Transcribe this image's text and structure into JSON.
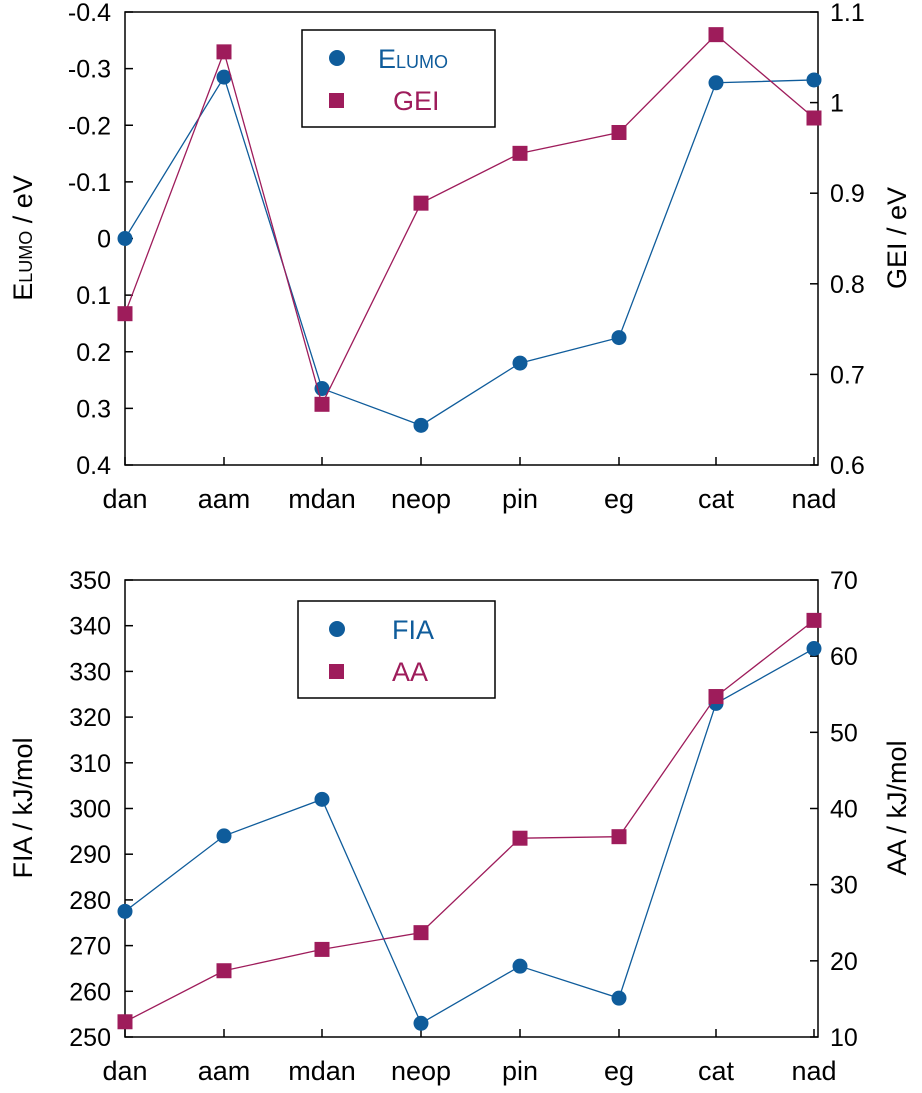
{
  "colors": {
    "blue": "#0F5C9B",
    "red": "#9E1C5B",
    "axis": "#000000"
  },
  "chart_data": [
    {
      "type": "line",
      "categories": [
        "dan",
        "aam",
        "mdan",
        "neop",
        "pin",
        "eg",
        "cat",
        "nad"
      ],
      "y_left": {
        "label_main": "E",
        "label_sub": "LUMO",
        "label_unit": " / eV",
        "lim": [
          0.4,
          -0.4
        ],
        "inverted": true,
        "ticks": [
          -0.4,
          -0.3,
          -0.2,
          -0.1,
          0,
          0.1,
          0.2,
          0.3,
          0.4
        ],
        "tick_labels": [
          "-0.4",
          "-0.3",
          "-0.2",
          "-0.1",
          "0",
          "0.1",
          "0.2",
          "0.3",
          "0.4"
        ]
      },
      "y_right": {
        "label": "GEI / eV",
        "lim": [
          0.6,
          1.1
        ],
        "ticks": [
          0.6,
          0.7,
          0.8,
          0.9,
          1.0,
          1.1
        ],
        "tick_labels": [
          "0.6",
          "0.7",
          "0.8",
          "0.9",
          "1",
          "1.1"
        ]
      },
      "series": [
        {
          "name_main": "E",
          "name_sub": "LUMO",
          "axis": "left",
          "marker": "circle",
          "color": "#0F5C9B",
          "values": [
            0.0,
            -0.285,
            0.265,
            0.33,
            0.22,
            0.175,
            -0.275,
            -0.28
          ]
        },
        {
          "name": "GEI",
          "axis": "right",
          "marker": "square",
          "color": "#9E1C5B",
          "values": [
            0.767,
            1.056,
            0.667,
            0.889,
            0.944,
            0.967,
            1.075,
            0.983
          ]
        }
      ],
      "legend": "top-center",
      "grid": false
    },
    {
      "type": "line",
      "categories": [
        "dan",
        "aam",
        "mdan",
        "neop",
        "pin",
        "eg",
        "cat",
        "nad"
      ],
      "y_left": {
        "label": "FIA / kJ/mol",
        "lim": [
          250,
          350
        ],
        "ticks": [
          250,
          260,
          270,
          280,
          290,
          300,
          310,
          320,
          330,
          340,
          350
        ],
        "tick_labels": [
          "250",
          "260",
          "270",
          "280",
          "290",
          "300",
          "310",
          "320",
          "330",
          "340",
          "350"
        ]
      },
      "y_right": {
        "label": "AA / kJ/mol",
        "lim": [
          10,
          70
        ],
        "ticks": [
          10,
          20,
          30,
          40,
          50,
          60,
          70
        ],
        "tick_labels": [
          "10",
          "20",
          "30",
          "40",
          "50",
          "60",
          "70"
        ]
      },
      "series": [
        {
          "name": "FIA",
          "axis": "left",
          "marker": "circle",
          "color": "#0F5C9B",
          "values": [
            277.5,
            294,
            302,
            253,
            265.5,
            258.5,
            323,
            335
          ]
        },
        {
          "name": "AA",
          "axis": "right",
          "marker": "square",
          "color": "#9E1C5B",
          "values": [
            12,
            18.7,
            21.5,
            23.7,
            36.1,
            36.3,
            54.7,
            64.7
          ]
        }
      ],
      "legend": "top-center",
      "grid": false
    }
  ]
}
